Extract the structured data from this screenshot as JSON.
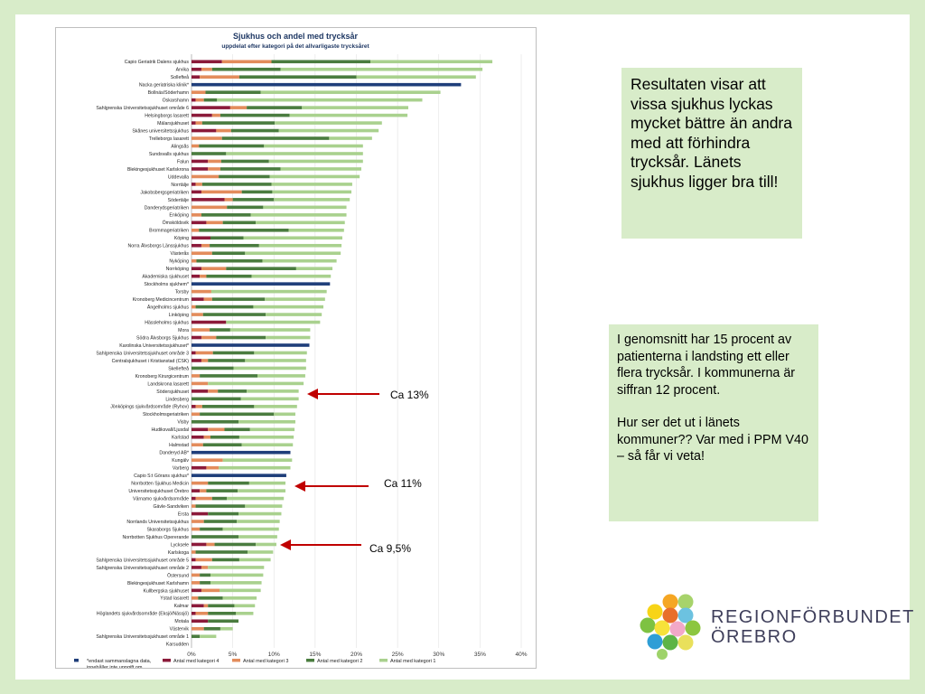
{
  "notes": {
    "box1": "Resultaten visar att vissa sjukhus lyckas mycket bättre än andra med att förhindra trycksår. Länets sjukhus ligger bra till!",
    "box2_p1": "I genomsnitt har 15 procent av patienterna i landsting ett eller flera trycksår. I kommunerna är siffran 12 procent.",
    "box2_p2": "Hur ser det ut i länets kommuner?? Var med i PPM V40 – så får vi veta!"
  },
  "annotations": [
    {
      "label": "Ca 13%"
    },
    {
      "label": "Ca 11%"
    },
    {
      "label": "Ca 9,5%"
    }
  ],
  "logo": {
    "line1": "REGIONFÖRBUNDET",
    "line2": "ÖREBRO"
  },
  "colors": {
    "kat4": "#8b1a3a",
    "kat3": "#e38c5c",
    "kat2": "#4a7c3f",
    "kat1": "#a9d18e",
    "aggregate": "#1f3e7a",
    "arrow": "#c00000"
  },
  "chart_data": {
    "type": "bar",
    "orientation": "horizontal",
    "stacked": true,
    "title": "Sjukhus och andel med trycksår",
    "subtitle": "uppdelat efter kategori på det allvarligaste trycksåret",
    "xlim": [
      0,
      0.4
    ],
    "xticks": [
      "0%",
      "5%",
      "10%",
      "15%",
      "20%",
      "25%",
      "30%",
      "35%",
      "40%"
    ],
    "legend": [
      "*endast sammanslagna data, innehåller inte uppgift om kategori",
      "Antal med kategori 4",
      "Antal med kategori 3",
      "Antal med kategori 2",
      "Antal med kategori 1"
    ],
    "series_names": [
      "Antal med kategori 4",
      "Antal med kategori 3",
      "Antal med kategori 2",
      "Antal med kategori 1"
    ],
    "rows": [
      {
        "name": "Capio Geriatrik Dalens sjukhus",
        "k4": 0.037,
        "k3": 0.06,
        "k2": 0.12,
        "k1": 0.148
      },
      {
        "name": "Arvika",
        "k4": 0.012,
        "k3": 0.013,
        "k2": 0.083,
        "k1": 0.245
      },
      {
        "name": "Sollefteå",
        "k4": 0.01,
        "k3": 0.048,
        "k2": 0.142,
        "k1": 0.145
      },
      {
        "name": "Nacka geriatriska klinik*",
        "total": 0.327
      },
      {
        "name": "Bollnäs/Söderhamn",
        "k4": 0.0,
        "k3": 0.017,
        "k2": 0.067,
        "k1": 0.218
      },
      {
        "name": "Oskarshamn",
        "k4": 0.005,
        "k3": 0.01,
        "k2": 0.016,
        "k1": 0.249
      },
      {
        "name": "Sahlgrenska Universitetssjukhuset område 6",
        "k4": 0.047,
        "k3": 0.02,
        "k2": 0.067,
        "k1": 0.129
      },
      {
        "name": "Helsingborgs lasarett",
        "k4": 0.025,
        "k3": 0.01,
        "k2": 0.084,
        "k1": 0.143
      },
      {
        "name": "Mälarsjukhuset",
        "k4": 0.005,
        "k3": 0.008,
        "k2": 0.088,
        "k1": 0.13
      },
      {
        "name": "Skånes universitetssjukhus",
        "k4": 0.03,
        "k3": 0.018,
        "k2": 0.058,
        "k1": 0.121
      },
      {
        "name": "Trelleborgs lasarett",
        "k4": 0.0,
        "k3": 0.037,
        "k2": 0.13,
        "k1": 0.052
      },
      {
        "name": "Alingsås",
        "k4": 0.0,
        "k3": 0.009,
        "k2": 0.079,
        "k1": 0.12
      },
      {
        "name": "Sundsvalls sjukhus",
        "k4": 0.0,
        "k3": 0.0,
        "k2": 0.042,
        "k1": 0.166
      },
      {
        "name": "Falun",
        "k4": 0.02,
        "k3": 0.016,
        "k2": 0.058,
        "k1": 0.114
      },
      {
        "name": "Blekingesjukhuset Karlskrona",
        "k4": 0.02,
        "k3": 0.015,
        "k2": 0.073,
        "k1": 0.098
      },
      {
        "name": "Uddevalla",
        "k4": 0.0,
        "k3": 0.033,
        "k2": 0.062,
        "k1": 0.109
      },
      {
        "name": "Norrtälje",
        "k4": 0.005,
        "k3": 0.008,
        "k2": 0.084,
        "k1": 0.098
      },
      {
        "name": "Jakobsbergsgeriatriken",
        "k4": 0.012,
        "k3": 0.049,
        "k2": 0.037,
        "k1": 0.096
      },
      {
        "name": "Södertälje",
        "k4": 0.04,
        "k3": 0.01,
        "k2": 0.05,
        "k1": 0.092
      },
      {
        "name": "Danderydsgeriatriken",
        "k4": 0.0,
        "k3": 0.043,
        "k2": 0.044,
        "k1": 0.101
      },
      {
        "name": "Enköping",
        "k4": 0.0,
        "k3": 0.012,
        "k2": 0.06,
        "k1": 0.116
      },
      {
        "name": "Ömsköldsvik",
        "k4": 0.018,
        "k3": 0.02,
        "k2": 0.04,
        "k1": 0.108
      },
      {
        "name": "Brommageriatriken",
        "k4": 0.0,
        "k3": 0.009,
        "k2": 0.109,
        "k1": 0.067
      },
      {
        "name": "Köping",
        "k4": 0.023,
        "k3": 0.0,
        "k2": 0.04,
        "k1": 0.12
      },
      {
        "name": "Norra Älvsborgs Länssjukhus",
        "k4": 0.012,
        "k3": 0.01,
        "k2": 0.06,
        "k1": 0.1
      },
      {
        "name": "Västerås",
        "k4": 0.0,
        "k3": 0.025,
        "k2": 0.04,
        "k1": 0.116
      },
      {
        "name": "Nyköping",
        "k4": 0.0,
        "k3": 0.006,
        "k2": 0.08,
        "k1": 0.09
      },
      {
        "name": "Norrköping",
        "k4": 0.012,
        "k3": 0.03,
        "k2": 0.085,
        "k1": 0.044
      },
      {
        "name": "Akademiska sjukhuset",
        "k4": 0.01,
        "k3": 0.008,
        "k2": 0.055,
        "k1": 0.096
      },
      {
        "name": "Stockholms sjukhem*",
        "total": 0.168
      },
      {
        "name": "Torsby",
        "k4": 0.0,
        "k3": 0.024,
        "k2": 0.0,
        "k1": 0.14
      },
      {
        "name": "Kronoberg Medicincentrum",
        "k4": 0.015,
        "k3": 0.01,
        "k2": 0.064,
        "k1": 0.073
      },
      {
        "name": "Ängelholms sjukhus",
        "k4": 0.0,
        "k3": 0.005,
        "k2": 0.07,
        "k1": 0.085
      },
      {
        "name": "Linköping",
        "k4": 0.0,
        "k3": 0.014,
        "k2": 0.076,
        "k1": 0.068
      },
      {
        "name": "Hässleholms sjukhus",
        "k4": 0.042,
        "k3": 0.0,
        "k2": 0.0,
        "k1": 0.114
      },
      {
        "name": "Mora",
        "k4": 0.0,
        "k3": 0.022,
        "k2": 0.025,
        "k1": 0.097
      },
      {
        "name": "Södra Älvsborgs Sjukhus",
        "k4": 0.012,
        "k3": 0.018,
        "k2": 0.06,
        "k1": 0.054
      },
      {
        "name": "Karolinska Universitetssjukhuset*",
        "total": 0.143
      },
      {
        "name": "Sahlgrenska Universitetssjukhuset område 3",
        "k4": 0.005,
        "k3": 0.021,
        "k2": 0.05,
        "k1": 0.064
      },
      {
        "name": "Centralsjukhuset i Kristianstad (CSK)",
        "k4": 0.012,
        "k3": 0.008,
        "k2": 0.045,
        "k1": 0.074
      },
      {
        "name": "Skellefteå",
        "k4": 0.0,
        "k3": 0.0,
        "k2": 0.051,
        "k1": 0.088
      },
      {
        "name": "Kronoberg Kirurgicentrum",
        "k4": 0.0,
        "k3": 0.01,
        "k2": 0.07,
        "k1": 0.058
      },
      {
        "name": "Landskrona lasarett",
        "k4": 0.0,
        "k3": 0.02,
        "k2": 0.0,
        "k1": 0.116
      },
      {
        "name": "Södersjukhuset",
        "k4": 0.02,
        "k3": 0.012,
        "k2": 0.035,
        "k1": 0.063
      },
      {
        "name": "Lindesberg",
        "k4": 0.0,
        "k3": 0.0,
        "k2": 0.06,
        "k1": 0.07
      },
      {
        "name": "Jönköpings sjukvårdsområde (Ryhov)",
        "k4": 0.005,
        "k3": 0.008,
        "k2": 0.063,
        "k1": 0.052
      },
      {
        "name": "Stockholmsgeriatriken",
        "k4": 0.0,
        "k3": 0.01,
        "k2": 0.09,
        "k1": 0.026
      },
      {
        "name": "Visby",
        "k4": 0.0,
        "k3": 0.0,
        "k2": 0.057,
        "k1": 0.069
      },
      {
        "name": "Hudiksvall/Ljusdal",
        "k4": 0.02,
        "k3": 0.02,
        "k2": 0.031,
        "k1": 0.054
      },
      {
        "name": "Karlstad",
        "k4": 0.015,
        "k3": 0.008,
        "k2": 0.035,
        "k1": 0.066
      },
      {
        "name": "Halmstad",
        "k4": 0.0,
        "k3": 0.014,
        "k2": 0.047,
        "k1": 0.062
      },
      {
        "name": "Danderyd AB*",
        "total": 0.12
      },
      {
        "name": "Kungälv",
        "k4": 0.0,
        "k3": 0.038,
        "k2": 0.0,
        "k1": 0.084
      },
      {
        "name": "Varberg",
        "k4": 0.018,
        "k3": 0.015,
        "k2": 0.0,
        "k1": 0.087
      },
      {
        "name": "Capio S:t Görans sjukhus*",
        "total": 0.115
      },
      {
        "name": "Norrbotten Sjukhus Medicin",
        "k4": 0.0,
        "k3": 0.02,
        "k2": 0.05,
        "k1": 0.044
      },
      {
        "name": "Universitetssjukhuset Örebro",
        "k4": 0.01,
        "k3": 0.008,
        "k2": 0.038,
        "k1": 0.058
      },
      {
        "name": "Värnamo sjukvårdsområde",
        "k4": 0.005,
        "k3": 0.02,
        "k2": 0.018,
        "k1": 0.069
      },
      {
        "name": "Gävle-Sandviken",
        "k4": 0.0,
        "k3": 0.005,
        "k2": 0.06,
        "k1": 0.045
      },
      {
        "name": "Ersta",
        "k4": 0.02,
        "k3": 0.0,
        "k2": 0.037,
        "k1": 0.052
      },
      {
        "name": "Norrlands Universitetssjukhus",
        "k4": 0.0,
        "k3": 0.015,
        "k2": 0.04,
        "k1": 0.052
      },
      {
        "name": "Skaraborgs Sjukhus",
        "k4": 0.0,
        "k3": 0.01,
        "k2": 0.028,
        "k1": 0.068
      },
      {
        "name": "Norrbotten Sjukhus Opererande",
        "k4": 0.0,
        "k3": 0.0,
        "k2": 0.057,
        "k1": 0.047
      },
      {
        "name": "Lycksele",
        "k4": 0.018,
        "k3": 0.01,
        "k2": 0.05,
        "k1": 0.025
      },
      {
        "name": "Karlskoga",
        "k4": 0.0,
        "k3": 0.005,
        "k2": 0.063,
        "k1": 0.031
      },
      {
        "name": "Sahlgrenska Universitetssjukhuset område 5",
        "k4": 0.005,
        "k3": 0.02,
        "k2": 0.033,
        "k1": 0.038
      },
      {
        "name": "Sahlgrenska Universitetssjukhuset område 2",
        "k4": 0.012,
        "k3": 0.008,
        "k2": 0.0,
        "k1": 0.068
      },
      {
        "name": "Östersund",
        "k4": 0.0,
        "k3": 0.01,
        "k2": 0.013,
        "k1": 0.064
      },
      {
        "name": "Blekingesjukhuset Karlshamn",
        "k4": 0.0,
        "k3": 0.01,
        "k2": 0.013,
        "k1": 0.062
      },
      {
        "name": "Kullbergska sjukhuset",
        "k4": 0.012,
        "k3": 0.022,
        "k2": 0.0,
        "k1": 0.05
      },
      {
        "name": "Ystad lasarett",
        "k4": 0.0,
        "k3": 0.008,
        "k2": 0.03,
        "k1": 0.041
      },
      {
        "name": "Kalmar",
        "k4": 0.015,
        "k3": 0.005,
        "k2": 0.032,
        "k1": 0.025
      },
      {
        "name": "Höglandets sjukvårdsområde (Eksjö/Nässjö)",
        "k4": 0.005,
        "k3": 0.015,
        "k2": 0.034,
        "k1": 0.021
      },
      {
        "name": "Motala",
        "k4": 0.02,
        "k3": 0.0,
        "k2": 0.037,
        "k1": 0.0
      },
      {
        "name": "Västervik",
        "k4": 0.0,
        "k3": 0.015,
        "k2": 0.02,
        "k1": 0.015
      },
      {
        "name": "Sahlgrenska Universitetssjukhuset område 1",
        "k4": 0.0,
        "k3": 0.0,
        "k2": 0.01,
        "k1": 0.02
      },
      {
        "name": "Karsudden",
        "k4": 0.0,
        "k3": 0.0,
        "k2": 0.0,
        "k1": 0.0
      }
    ]
  }
}
